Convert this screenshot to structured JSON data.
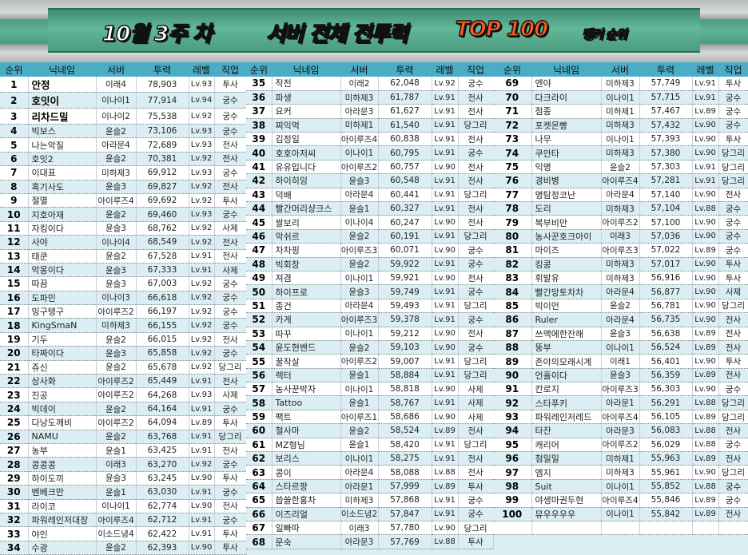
{
  "banner": {
    "week": "10월 3주 차",
    "title": "서버 전체 전투력",
    "top": "TOP 100",
    "sub": "랭커 순위"
  },
  "colors": {
    "header": "#4bacc6",
    "row_alt": "#daeef3",
    "top_text": "#ff5a1f",
    "banner": "#5fb497"
  },
  "headers": [
    "순위",
    "닉네임",
    "서버",
    "투력",
    "레벨",
    "직업"
  ],
  "rows": [
    [
      1,
      "안정",
      "이래4",
      "78,903",
      "Lv.93",
      "투사"
    ],
    [
      2,
      "호잇이",
      "이나이1",
      "77,914",
      "Lv.94",
      "궁수"
    ],
    [
      3,
      "리차드밀",
      "이나이2",
      "75,538",
      "Lv.92",
      "궁수"
    ],
    [
      4,
      "빅보스",
      "윤슬2",
      "73,106",
      "Lv.93",
      "궁수"
    ],
    [
      5,
      "나는악질",
      "아라문4",
      "72,689",
      "Lv.93",
      "전사"
    ],
    [
      6,
      "호잇2",
      "윤슬2",
      "70,381",
      "Lv.92",
      "전사"
    ],
    [
      7,
      "이대표",
      "미하제3",
      "69,912",
      "Lv.93",
      "궁수"
    ],
    [
      8,
      "흑기사도",
      "윤슬3",
      "69,827",
      "Lv.92",
      "전사"
    ],
    [
      9,
      "절멸",
      "아이루즈4",
      "69,692",
      "Lv.92",
      "투사"
    ],
    [
      10,
      "지호아재",
      "윤슬2",
      "69,460",
      "Lv.93",
      "궁수"
    ],
    [
      11,
      "자킹이다",
      "윤슬3",
      "68,762",
      "Lv.92",
      "사제"
    ],
    [
      12,
      "사야",
      "이나이4",
      "68,549",
      "Lv.92",
      "전사"
    ],
    [
      13,
      "태쿤",
      "윤슬2",
      "67,528",
      "Lv.91",
      "전사"
    ],
    [
      14,
      "악몽이다",
      "윤슬3",
      "67,333",
      "Lv.91",
      "사제"
    ],
    [
      15,
      "따끔",
      "윤슬3",
      "67,003",
      "Lv.92",
      "궁수"
    ],
    [
      16,
      "도파민",
      "이나이3",
      "66,618",
      "Lv.92",
      "궁수"
    ],
    [
      17,
      "밍구텡구",
      "아이루즈2",
      "66,197",
      "Lv.92",
      "궁수"
    ],
    [
      18,
      "KingSmaN",
      "미하제3",
      "66,155",
      "Lv.92",
      "궁수"
    ],
    [
      19,
      "기두",
      "윤슬2",
      "66,015",
      "Lv.92",
      "전사"
    ],
    [
      20,
      "타짜이다",
      "윤슬3",
      "65,858",
      "Lv.92",
      "궁수"
    ],
    [
      21,
      "쥬신",
      "윤슬2",
      "65,678",
      "Lv.92",
      "당그리"
    ],
    [
      22,
      "상사화",
      "아이루즈2",
      "65,449",
      "Lv.91",
      "전사"
    ],
    [
      23,
      "진공",
      "아이루즈2",
      "64,268",
      "Lv.93",
      "사제"
    ],
    [
      24,
      "빅데이",
      "윤슬2",
      "64,164",
      "Lv.91",
      "궁수"
    ],
    [
      25,
      "다낭도깨비",
      "아이루즈2",
      "64,094",
      "Lv.89",
      "투사"
    ],
    [
      26,
      "NAMU",
      "윤슬2",
      "63,768",
      "Lv.91",
      "당그리"
    ],
    [
      27,
      "농부",
      "윤슬1",
      "63,425",
      "Lv.91",
      "전사"
    ],
    [
      28,
      "콩콩콩",
      "이래3",
      "63,270",
      "Lv.92",
      "궁수"
    ],
    [
      29,
      "하이도끼",
      "윤슬3",
      "63,245",
      "Lv.90",
      "투사"
    ],
    [
      30,
      "벤베크만",
      "윤슬1",
      "63,030",
      "Lv.91",
      "궁수"
    ],
    [
      31,
      "라이코",
      "이나이1",
      "62,774",
      "Lv.90",
      "전사"
    ],
    [
      32,
      "파워레인저대장",
      "아이루즈4",
      "62,712",
      "Lv.91",
      "궁수"
    ],
    [
      33,
      "야인",
      "이소드녕4",
      "62,422",
      "Lv.91",
      "투사"
    ],
    [
      34,
      "수광",
      "윤슬2",
      "62,393",
      "Lv.90",
      "투사"
    ],
    [
      35,
      "작전",
      "이래2",
      "62,048",
      "Lv.92",
      "궁수"
    ],
    [
      36,
      "파생",
      "미하제3",
      "61,787",
      "Lv.91",
      "전사"
    ],
    [
      37,
      "요커",
      "아라문3",
      "61,627",
      "Lv.91",
      "전사"
    ],
    [
      38,
      "찌익먹",
      "미하제1",
      "61,540",
      "Lv.91",
      "당그리"
    ],
    [
      39,
      "김정일",
      "아이루즈4",
      "60,838",
      "Lv.91",
      "전사"
    ],
    [
      40,
      "호호아저씨",
      "이나이1",
      "60,795",
      "Lv.91",
      "궁수"
    ],
    [
      41,
      "유유입니다",
      "아이루즈2",
      "60,757",
      "Lv.90",
      "전사"
    ],
    [
      42,
      "하이히잉",
      "윤슬3",
      "60,548",
      "Lv.91",
      "전사"
    ],
    [
      43,
      "덕배",
      "아라문4",
      "60,441",
      "Lv.91",
      "당그리"
    ],
    [
      44,
      "빨간머리샹크스",
      "윤슬1",
      "60,327",
      "Lv.91",
      "전사"
    ],
    [
      45,
      "쌀보리",
      "이나이4",
      "60,247",
      "Lv.90",
      "전사"
    ],
    [
      46,
      "악쉬르",
      "윤슬2",
      "60,191",
      "Lv.91",
      "당그리"
    ],
    [
      47,
      "차차핑",
      "아이루즈3",
      "60,071",
      "Lv.90",
      "궁수"
    ],
    [
      48,
      "빅회장",
      "윤슬2",
      "59,922",
      "Lv.91",
      "궁수"
    ],
    [
      49,
      "져겸",
      "이나이1",
      "59,921",
      "Lv.90",
      "전사"
    ],
    [
      50,
      "하이프로",
      "윤슬3",
      "59,749",
      "Lv.91",
      "궁수"
    ],
    [
      51,
      "종건",
      "아라문4",
      "59,493",
      "Lv.91",
      "당그리"
    ],
    [
      52,
      "카게",
      "아이루즈3",
      "59,378",
      "Lv.91",
      "궁수"
    ],
    [
      53,
      "따꾸",
      "이나이1",
      "59,212",
      "Lv.90",
      "전사"
    ],
    [
      54,
      "윤도현밴드",
      "윤슬2",
      "59,103",
      "Lv.90",
      "궁수"
    ],
    [
      55,
      "꿀작살",
      "아이루즈2",
      "59,007",
      "Lv.91",
      "당그리"
    ],
    [
      56,
      "렉터",
      "윤슬1",
      "58,884",
      "Lv.91",
      "당그리"
    ],
    [
      57,
      "농사꾼박자",
      "이나이1",
      "58,818",
      "Lv.90",
      "사제"
    ],
    [
      58,
      "Tattoo",
      "윤슬1",
      "58,767",
      "Lv.91",
      "사제"
    ],
    [
      59,
      "팩트",
      "아이루즈1",
      "58,686",
      "Lv.90",
      "사제"
    ],
    [
      60,
      "철사마",
      "윤슬2",
      "58,524",
      "Lv.89",
      "전사"
    ],
    [
      61,
      "MZ형님",
      "윤슬1",
      "58,420",
      "Lv.91",
      "당그리"
    ],
    [
      62,
      "보리스",
      "이나이1",
      "58,275",
      "Lv.91",
      "전사"
    ],
    [
      63,
      "콩이",
      "아라문4",
      "58,088",
      "Lv.88",
      "전사"
    ],
    [
      64,
      "스타르팡",
      "아라문1",
      "57,999",
      "Lv.89",
      "투사"
    ],
    [
      65,
      "씁쓸한홍차",
      "미하제3",
      "57,868",
      "Lv.91",
      "궁수"
    ],
    [
      66,
      "이즈리얼",
      "이소드녕2",
      "57,847",
      "Lv.91",
      "궁수"
    ],
    [
      67,
      "일빠따",
      "이래3",
      "57,780",
      "Lv.90",
      "당그리"
    ],
    [
      68,
      "문숙",
      "아라문3",
      "57,769",
      "Lv.88",
      "투사"
    ],
    [
      69,
      "엔야",
      "미하제3",
      "57,749",
      "Lv.91",
      "투사"
    ],
    [
      70,
      "다크라이",
      "이나이1",
      "57,715",
      "Lv.91",
      "궁수"
    ],
    [
      71,
      "점종",
      "미하제1",
      "57,467",
      "Lv.89",
      "궁수"
    ],
    [
      72,
      "포켓몬빵",
      "미하제3",
      "57,432",
      "Lv.90",
      "궁수"
    ],
    [
      73,
      "나무",
      "이나이1",
      "57,393",
      "Lv.90",
      "투사"
    ],
    [
      74,
      "쿠안타",
      "미하제3",
      "57,380",
      "Lv.90",
      "당그리"
    ],
    [
      75,
      "익명",
      "윤슬2",
      "57,303",
      "Lv.91",
      "당그리"
    ],
    [
      76,
      "경비병",
      "아이루즈4",
      "57,281",
      "Lv.91",
      "당그리"
    ],
    [
      77,
      "명탐정코난",
      "아라문4",
      "57,140",
      "Lv.90",
      "전사"
    ],
    [
      78,
      "도리",
      "미하제3",
      "57,104",
      "Lv.88",
      "궁수"
    ],
    [
      79,
      "복부비만",
      "아이루즈2",
      "57,100",
      "Lv.90",
      "궁수"
    ],
    [
      80,
      "농사꾼호크아이",
      "이래3",
      "57,036",
      "Lv.90",
      "궁수"
    ],
    [
      81,
      "마이즈",
      "아이루즈3",
      "57,022",
      "Lv.89",
      "궁수"
    ],
    [
      82,
      "킹콩",
      "미하제3",
      "57,017",
      "Lv.90",
      "투사"
    ],
    [
      83,
      "휘발유",
      "미하제3",
      "56,916",
      "Lv.90",
      "투사"
    ],
    [
      84,
      "빨간망토차차",
      "아라문4",
      "56,877",
      "Lv.90",
      "사제"
    ],
    [
      85,
      "빅이언",
      "윤슬2",
      "56,781",
      "Lv.90",
      "당그리"
    ],
    [
      86,
      "Ruler",
      "아라문4",
      "56,735",
      "Lv.90",
      "전사"
    ],
    [
      87,
      "쓰맥에한잔해",
      "윤슬3",
      "56,638",
      "Lv.89",
      "전사"
    ],
    [
      88,
      "뚱부",
      "이나이1",
      "56,524",
      "Lv.89",
      "전사"
    ],
    [
      89,
      "존야의모래시계",
      "이래1",
      "56,401",
      "Lv.90",
      "투사"
    ],
    [
      90,
      "언홀이다",
      "윤슬3",
      "56,359",
      "Lv.89",
      "전사"
    ],
    [
      91,
      "칸로지",
      "아이루즈3",
      "56,303",
      "Lv.90",
      "궁수"
    ],
    [
      92,
      "스타푸키",
      "아라문1",
      "56,291",
      "Lv.88",
      "당그리"
    ],
    [
      93,
      "파워레인저레드",
      "아이루즈4",
      "56,105",
      "Lv.89",
      "당그리"
    ],
    [
      94,
      "타잔",
      "아라문3",
      "56,083",
      "Lv.88",
      "전사"
    ],
    [
      95,
      "캐리어",
      "아이루즈2",
      "56,029",
      "Lv.88",
      "궁수"
    ],
    [
      96,
      "첨밀밀",
      "미하제1",
      "55,963",
      "Lv.89",
      "전사"
    ],
    [
      97,
      "엠지",
      "미하제3",
      "55,961",
      "Lv.90",
      "당그리"
    ],
    [
      98,
      "Suit",
      "이나이1",
      "55,852",
      "Lv.88",
      "궁수"
    ],
    [
      99,
      "야생마권두현",
      "아이루즈4",
      "55,846",
      "Lv.89",
      "궁수"
    ],
    [
      100,
      "뮤우우우우",
      "이나이1",
      "55,842",
      "Lv.89",
      "전사"
    ]
  ]
}
